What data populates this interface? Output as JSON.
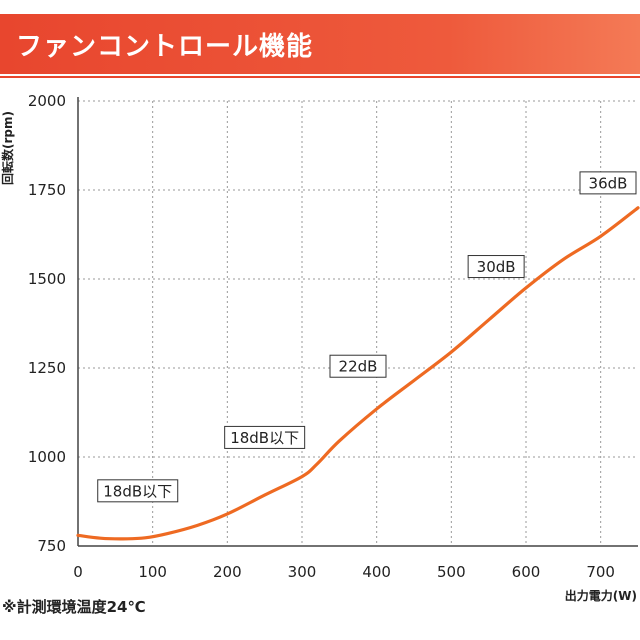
{
  "header": {
    "title": "ファンコントロール機能"
  },
  "chart_data": {
    "type": "line",
    "title": "ファンコントロール機能",
    "xlabel": "出力電力(W)",
    "ylabel": "回転数(rpm)",
    "xlim": [
      0,
      750
    ],
    "ylim": [
      750,
      2000
    ],
    "x_ticks": [
      0,
      100,
      200,
      300,
      400,
      500,
      600,
      700
    ],
    "y_ticks": [
      750,
      1000,
      1250,
      1500,
      1750,
      2000
    ],
    "grid": true,
    "series": [
      {
        "color": "#ee6a22",
        "x": [
          0,
          30,
          60,
          90,
          120,
          160,
          200,
          250,
          300,
          320,
          350,
          400,
          450,
          500,
          550,
          600,
          650,
          700,
          750
        ],
        "y": [
          780,
          772,
          770,
          773,
          785,
          808,
          840,
          893,
          945,
          980,
          1045,
          1135,
          1215,
          1295,
          1385,
          1475,
          1555,
          1620,
          1700
        ]
      }
    ],
    "annotations": [
      {
        "text": "18dB以下",
        "x": 80,
        "y": 905
      },
      {
        "text": "18dB以下",
        "x": 250,
        "y": 1055
      },
      {
        "text": "22dB",
        "x": 375,
        "y": 1255
      },
      {
        "text": "30dB",
        "x": 560,
        "y": 1535
      },
      {
        "text": "36dB",
        "x": 737,
        "y": 1770
      }
    ]
  },
  "footnote": "※計測環境温度24℃"
}
